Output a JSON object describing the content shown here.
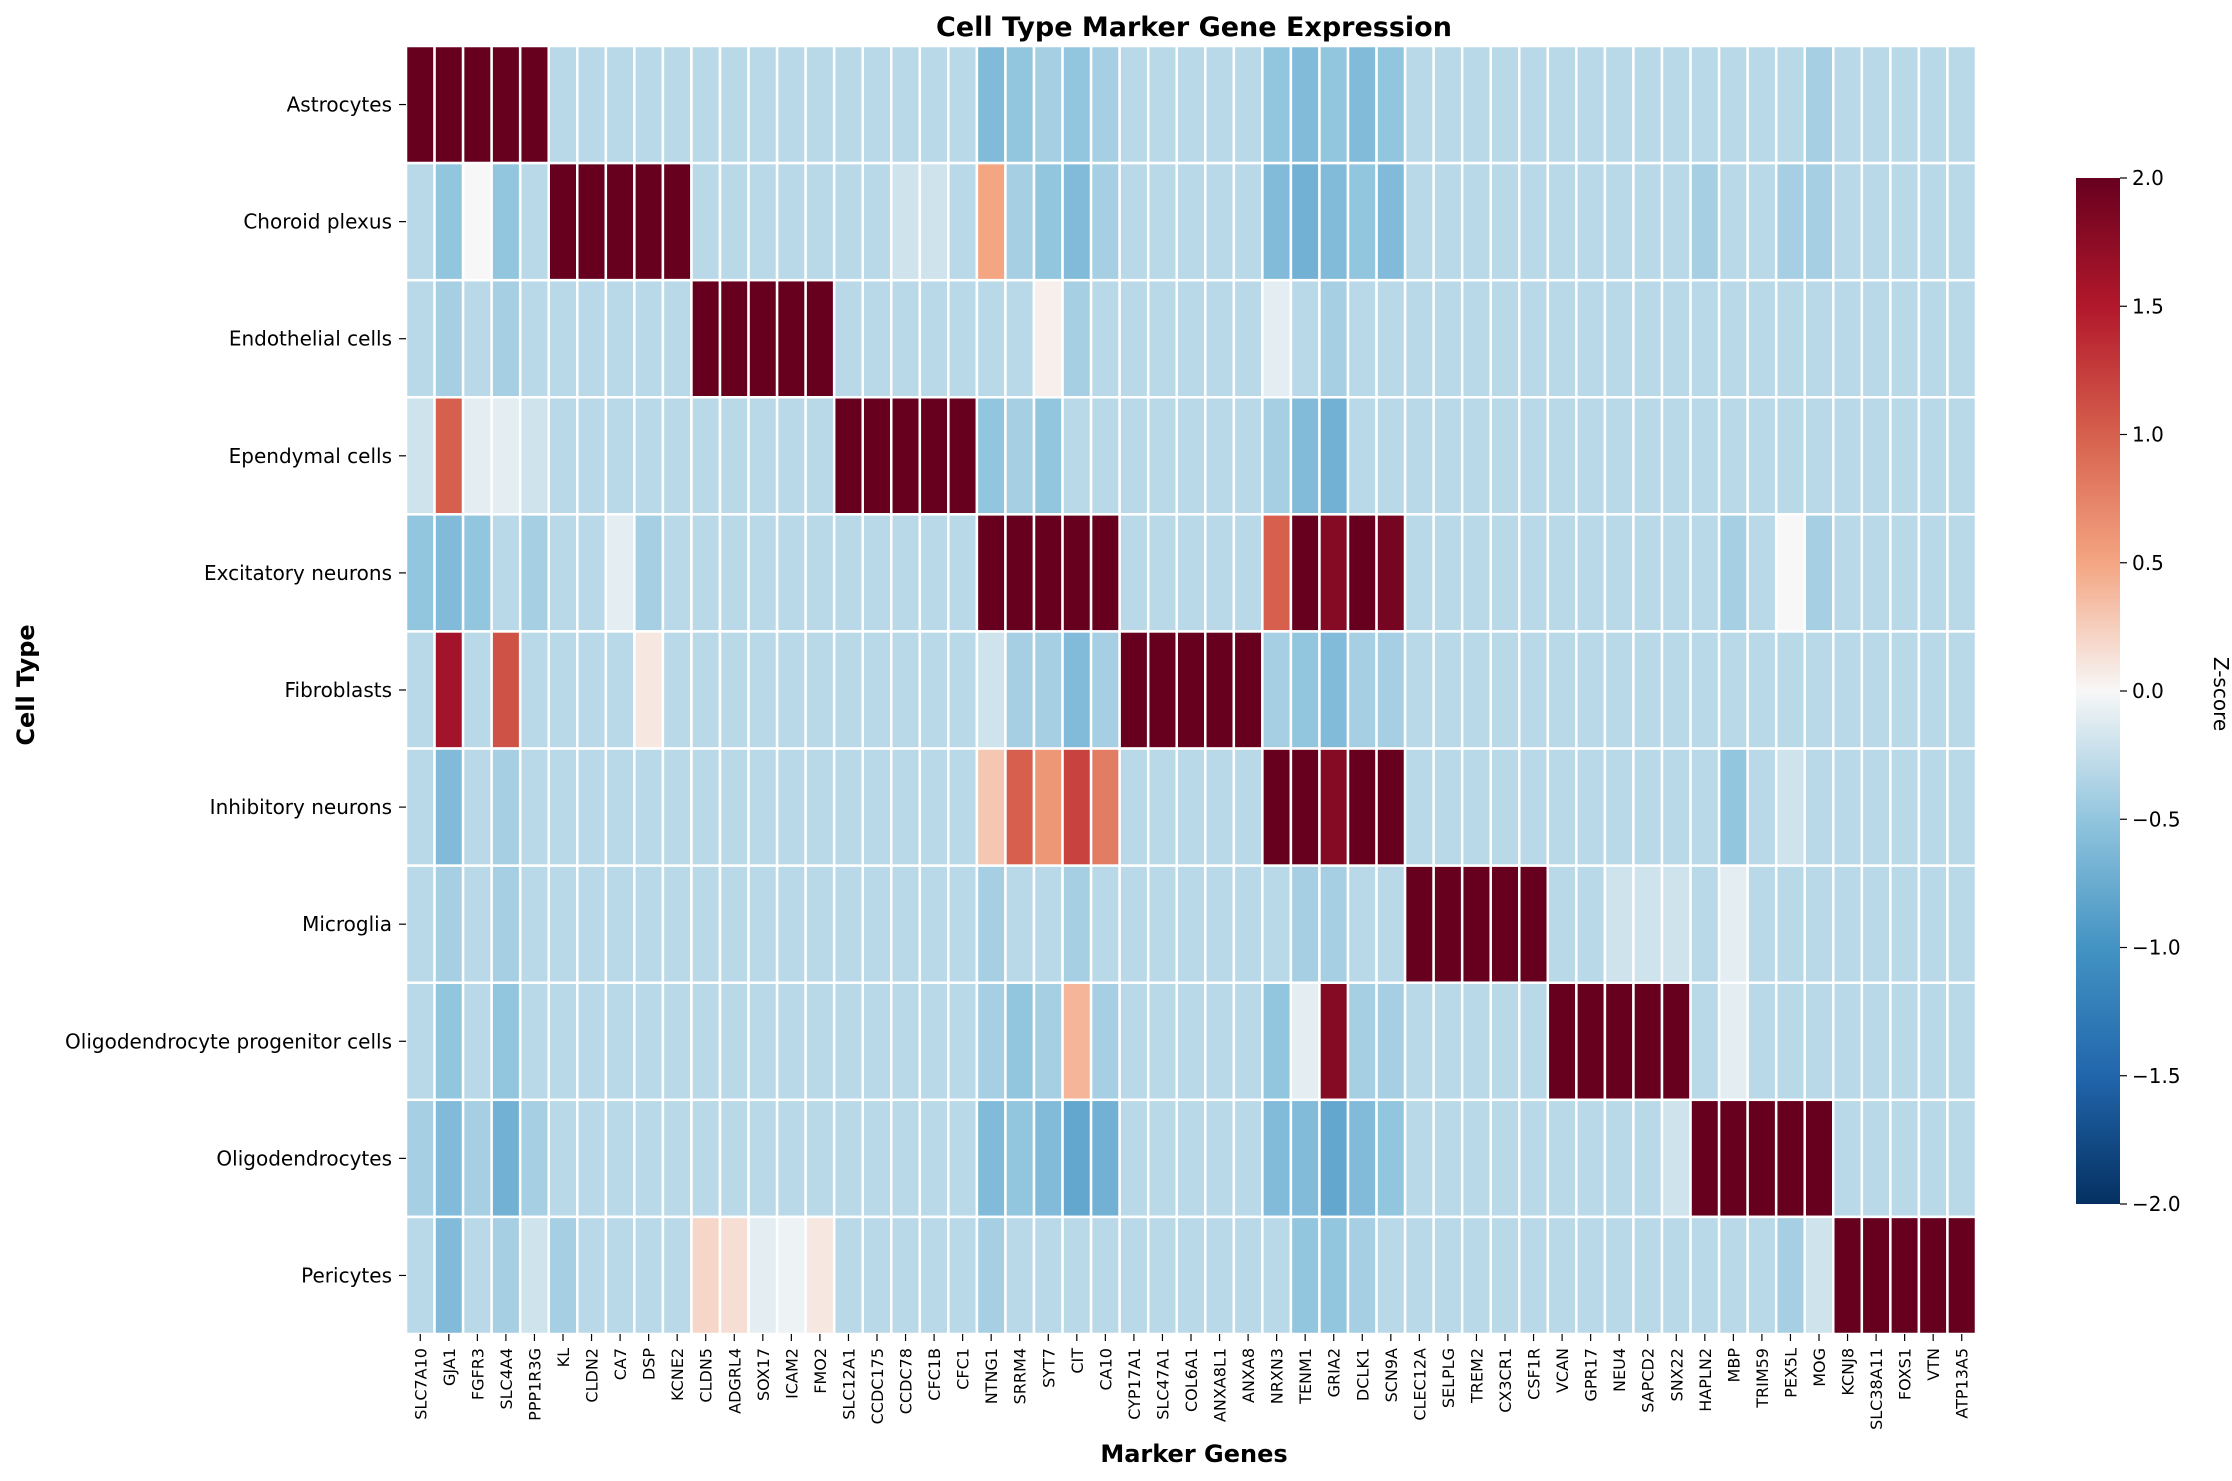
{
  "chart_data": {
    "type": "heatmap",
    "title": "Cell Type Marker Gene Expression",
    "xlabel": "Marker Genes",
    "ylabel": "Cell Type",
    "colorbar_label": "Z-score",
    "vmin": -2,
    "vmax": 2,
    "colorbar_ticks": [
      -2.0,
      -1.5,
      -1.0,
      -0.5,
      0.0,
      0.5,
      1.0,
      1.5,
      2.0
    ],
    "colorbar_tick_labels": [
      "−2.0",
      "−1.5",
      "−1.0",
      "−0.5",
      "0.0",
      "0.5",
      "1.0",
      "1.5",
      "2.0"
    ],
    "colormap": "RdBu_r",
    "rows": [
      "Astrocytes",
      "Choroid plexus",
      "Endothelial cells",
      "Ependymal cells",
      "Excitatory neurons",
      "Fibroblasts",
      "Inhibitory neurons",
      "Microglia",
      "Oligodendrocyte progenitor cells",
      "Oligodendrocytes",
      "Pericytes"
    ],
    "columns": [
      "SLC7A10",
      "GJA1",
      "FGFR3",
      "SLC4A4",
      "PPP1R3G",
      "KL",
      "CLDN2",
      "CA7",
      "DSP",
      "KCNE2",
      "CLDN5",
      "ADGRL4",
      "SOX17",
      "ICAM2",
      "FMO2",
      "SLC12A1",
      "CCDC175",
      "CCDC78",
      "CFC1B",
      "CFC1",
      "NTNG1",
      "SRRM4",
      "SYT7",
      "CIT",
      "CA10",
      "CYP17A1",
      "SLC47A1",
      "COL6A1",
      "ANXA8L1",
      "ANXA8",
      "NRXN3",
      "TENM1",
      "GRIA2",
      "DCLK1",
      "SCN9A",
      "CLEC12A",
      "SELPLG",
      "TREM2",
      "CX3CR1",
      "CSF1R",
      "VCAN",
      "GPR17",
      "NEU4",
      "SAPCD2",
      "SNX22",
      "HAPLN2",
      "MBP",
      "TRIM59",
      "PEX5L",
      "MOG",
      "KCNJ8",
      "SLC38A11",
      "FOXS1",
      "VTN",
      "ATP13A5"
    ],
    "values": [
      [
        2.0,
        2.0,
        2.0,
        2.0,
        2.0,
        -0.3,
        -0.3,
        -0.3,
        -0.3,
        -0.3,
        -0.3,
        -0.3,
        -0.3,
        -0.3,
        -0.3,
        -0.3,
        -0.3,
        -0.3,
        -0.3,
        -0.3,
        -0.6,
        -0.5,
        -0.4,
        -0.5,
        -0.4,
        -0.3,
        -0.3,
        -0.3,
        -0.3,
        -0.3,
        -0.5,
        -0.6,
        -0.5,
        -0.6,
        -0.5,
        -0.3,
        -0.3,
        -0.3,
        -0.3,
        -0.3,
        -0.3,
        -0.3,
        -0.3,
        -0.3,
        -0.3,
        -0.3,
        -0.3,
        -0.3,
        -0.3,
        -0.4,
        -0.3,
        -0.3,
        -0.3,
        -0.3,
        -0.3
      ],
      [
        -0.3,
        -0.5,
        0.0,
        -0.5,
        -0.3,
        2.0,
        2.0,
        2.0,
        2.0,
        2.0,
        -0.3,
        -0.3,
        -0.3,
        -0.3,
        -0.3,
        -0.3,
        -0.3,
        -0.2,
        -0.2,
        -0.3,
        0.5,
        -0.4,
        -0.5,
        -0.6,
        -0.4,
        -0.3,
        -0.3,
        -0.3,
        -0.3,
        -0.3,
        -0.6,
        -0.7,
        -0.6,
        -0.5,
        -0.6,
        -0.3,
        -0.3,
        -0.3,
        -0.3,
        -0.3,
        -0.3,
        -0.3,
        -0.3,
        -0.3,
        -0.3,
        -0.4,
        -0.3,
        -0.3,
        -0.4,
        -0.4,
        -0.3,
        -0.3,
        -0.3,
        -0.3,
        -0.3
      ],
      [
        -0.3,
        -0.4,
        -0.3,
        -0.4,
        -0.3,
        -0.3,
        -0.3,
        -0.3,
        -0.3,
        -0.3,
        2.0,
        2.0,
        2.0,
        2.0,
        2.0,
        -0.3,
        -0.3,
        -0.3,
        -0.3,
        -0.3,
        -0.3,
        -0.3,
        0.05,
        -0.4,
        -0.3,
        -0.3,
        -0.3,
        -0.3,
        -0.3,
        -0.3,
        -0.1,
        -0.3,
        -0.4,
        -0.3,
        -0.3,
        -0.3,
        -0.3,
        -0.3,
        -0.3,
        -0.3,
        -0.3,
        -0.3,
        -0.3,
        -0.3,
        -0.3,
        -0.3,
        -0.3,
        -0.3,
        -0.3,
        -0.3,
        -0.3,
        -0.3,
        -0.3,
        -0.3,
        -0.3
      ],
      [
        -0.2,
        1.0,
        -0.1,
        -0.1,
        -0.2,
        -0.3,
        -0.3,
        -0.3,
        -0.3,
        -0.3,
        -0.3,
        -0.3,
        -0.3,
        -0.3,
        -0.3,
        2.0,
        2.0,
        2.0,
        2.0,
        2.0,
        -0.5,
        -0.4,
        -0.5,
        -0.3,
        -0.3,
        -0.3,
        -0.3,
        -0.3,
        -0.3,
        -0.3,
        -0.4,
        -0.6,
        -0.7,
        -0.3,
        -0.3,
        -0.3,
        -0.3,
        -0.3,
        -0.3,
        -0.3,
        -0.3,
        -0.3,
        -0.3,
        -0.3,
        -0.3,
        -0.3,
        -0.3,
        -0.3,
        -0.3,
        -0.3,
        -0.3,
        -0.3,
        -0.3,
        -0.3,
        -0.3
      ],
      [
        -0.5,
        -0.6,
        -0.5,
        -0.3,
        -0.4,
        -0.3,
        -0.3,
        -0.1,
        -0.4,
        -0.3,
        -0.3,
        -0.3,
        -0.3,
        -0.3,
        -0.3,
        -0.3,
        -0.3,
        -0.3,
        -0.3,
        -0.3,
        2.0,
        2.0,
        2.0,
        2.0,
        2.0,
        -0.3,
        -0.3,
        -0.3,
        -0.3,
        -0.3,
        1.0,
        2.0,
        1.8,
        2.0,
        1.9,
        -0.3,
        -0.3,
        -0.3,
        -0.3,
        -0.3,
        -0.3,
        -0.3,
        -0.3,
        -0.3,
        -0.3,
        -0.3,
        -0.4,
        -0.3,
        0.0,
        -0.4,
        -0.3,
        -0.3,
        -0.3,
        -0.3,
        -0.3
      ],
      [
        -0.3,
        1.6,
        -0.3,
        1.1,
        -0.3,
        -0.3,
        -0.3,
        -0.3,
        0.1,
        -0.3,
        -0.3,
        -0.3,
        -0.3,
        -0.3,
        -0.3,
        -0.3,
        -0.3,
        -0.3,
        -0.3,
        -0.3,
        -0.2,
        -0.4,
        -0.4,
        -0.6,
        -0.4,
        2.0,
        2.0,
        2.0,
        2.0,
        2.0,
        -0.4,
        -0.5,
        -0.6,
        -0.4,
        -0.4,
        -0.3,
        -0.3,
        -0.3,
        -0.3,
        -0.3,
        -0.3,
        -0.3,
        -0.3,
        -0.3,
        -0.3,
        -0.3,
        -0.3,
        -0.3,
        -0.3,
        -0.3,
        -0.3,
        -0.3,
        -0.3,
        -0.3,
        -0.3
      ],
      [
        -0.3,
        -0.6,
        -0.3,
        -0.4,
        -0.3,
        -0.3,
        -0.3,
        -0.3,
        -0.3,
        -0.3,
        -0.3,
        -0.3,
        -0.3,
        -0.3,
        -0.3,
        -0.3,
        -0.3,
        -0.3,
        -0.3,
        -0.3,
        0.3,
        1.0,
        0.6,
        1.2,
        0.8,
        -0.3,
        -0.3,
        -0.3,
        -0.3,
        -0.3,
        2.0,
        2.0,
        1.8,
        2.0,
        2.0,
        -0.3,
        -0.3,
        -0.3,
        -0.3,
        -0.3,
        -0.3,
        -0.3,
        -0.3,
        -0.3,
        -0.3,
        -0.3,
        -0.5,
        -0.3,
        -0.2,
        -0.3,
        -0.3,
        -0.3,
        -0.3,
        -0.3,
        -0.3
      ],
      [
        -0.3,
        -0.4,
        -0.3,
        -0.4,
        -0.3,
        -0.3,
        -0.3,
        -0.3,
        -0.3,
        -0.3,
        -0.3,
        -0.3,
        -0.3,
        -0.3,
        -0.3,
        -0.3,
        -0.3,
        -0.3,
        -0.3,
        -0.3,
        -0.4,
        -0.3,
        -0.3,
        -0.4,
        -0.3,
        -0.3,
        -0.3,
        -0.3,
        -0.3,
        -0.3,
        -0.3,
        -0.4,
        -0.4,
        -0.3,
        -0.3,
        2.0,
        2.0,
        2.0,
        2.0,
        2.0,
        -0.3,
        -0.3,
        -0.2,
        -0.2,
        -0.2,
        -0.3,
        -0.1,
        -0.3,
        -0.3,
        -0.3,
        -0.3,
        -0.3,
        -0.3,
        -0.3,
        -0.3
      ],
      [
        -0.3,
        -0.5,
        -0.3,
        -0.5,
        -0.3,
        -0.3,
        -0.3,
        -0.3,
        -0.3,
        -0.3,
        -0.3,
        -0.3,
        -0.3,
        -0.3,
        -0.3,
        -0.3,
        -0.3,
        -0.3,
        -0.3,
        -0.3,
        -0.4,
        -0.5,
        -0.4,
        0.4,
        -0.4,
        -0.3,
        -0.3,
        -0.3,
        -0.3,
        -0.3,
        -0.5,
        -0.1,
        1.8,
        -0.4,
        -0.4,
        -0.3,
        -0.3,
        -0.3,
        -0.3,
        -0.3,
        2.0,
        2.0,
        2.0,
        2.0,
        2.0,
        -0.3,
        -0.1,
        -0.3,
        -0.3,
        -0.3,
        -0.3,
        -0.3,
        -0.3,
        -0.3,
        -0.3
      ],
      [
        -0.4,
        -0.6,
        -0.4,
        -0.7,
        -0.4,
        -0.3,
        -0.3,
        -0.3,
        -0.3,
        -0.3,
        -0.3,
        -0.3,
        -0.3,
        -0.3,
        -0.3,
        -0.3,
        -0.3,
        -0.3,
        -0.3,
        -0.3,
        -0.6,
        -0.5,
        -0.6,
        -0.8,
        -0.7,
        -0.3,
        -0.3,
        -0.3,
        -0.3,
        -0.3,
        -0.6,
        -0.6,
        -0.8,
        -0.6,
        -0.5,
        -0.3,
        -0.3,
        -0.3,
        -0.3,
        -0.3,
        -0.3,
        -0.3,
        -0.3,
        -0.3,
        -0.2,
        2.0,
        2.0,
        2.0,
        2.0,
        2.0,
        -0.3,
        -0.3,
        -0.3,
        -0.3,
        -0.3
      ],
      [
        -0.3,
        -0.6,
        -0.3,
        -0.4,
        -0.2,
        -0.4,
        -0.3,
        -0.3,
        -0.3,
        -0.3,
        0.2,
        0.15,
        -0.1,
        -0.05,
        0.1,
        -0.3,
        -0.3,
        -0.3,
        -0.3,
        -0.3,
        -0.4,
        -0.3,
        -0.3,
        -0.3,
        -0.3,
        -0.3,
        -0.3,
        -0.3,
        -0.3,
        -0.3,
        -0.3,
        -0.5,
        -0.5,
        -0.4,
        -0.3,
        -0.3,
        -0.3,
        -0.3,
        -0.3,
        -0.3,
        -0.3,
        -0.3,
        -0.3,
        -0.3,
        -0.3,
        -0.3,
        -0.3,
        -0.3,
        -0.4,
        -0.2,
        2.0,
        2.0,
        2.0,
        2.0,
        2.0
      ]
    ]
  }
}
